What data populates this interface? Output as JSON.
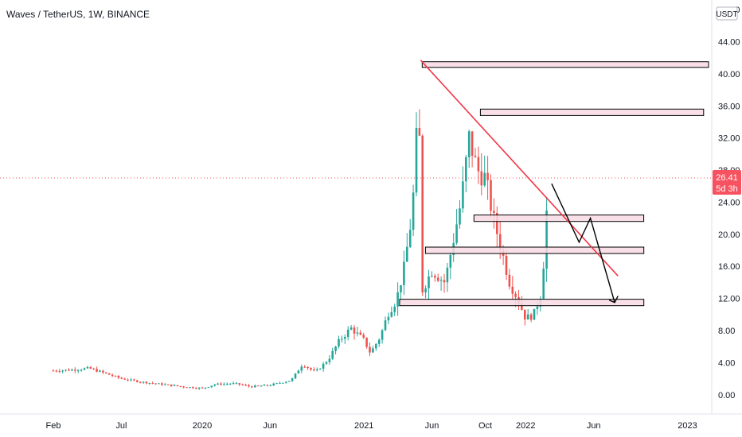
{
  "chart_data": {
    "type": "candlestick",
    "title": "Waves / TetherUS, 1W, BINANCE",
    "currency": "USDT",
    "last_price": "26.41",
    "countdown": "5d 3h",
    "y_ticks": [
      "0.00",
      "4.00",
      "8.00",
      "12.00",
      "16.00",
      "20.00",
      "24.00",
      "28.00",
      "32.00",
      "36.00",
      "40.00",
      "44.00",
      "48.00"
    ],
    "x_ticks": [
      {
        "label": "Feb",
        "t": 2019.08
      },
      {
        "label": "Jul",
        "t": 2019.5
      },
      {
        "label": "2020",
        "t": 2020.0
      },
      {
        "label": "Jun",
        "t": 2020.42
      },
      {
        "label": "2021",
        "t": 2021.0
      },
      {
        "label": "Jun",
        "t": 2021.42
      },
      {
        "label": "Oct",
        "t": 2021.75
      },
      {
        "label": "2022",
        "t": 2022.0
      },
      {
        "label": "Jun",
        "t": 2022.42
      },
      {
        "label": "2023",
        "t": 2023.0
      }
    ],
    "ylim": [
      -2.4,
      49.2
    ],
    "xlim": [
      2018.75,
      2023.15
    ],
    "colors": {
      "up": "#26a69a",
      "down": "#ef5350",
      "trendline": "#f23645",
      "zone_fill": "#f8dbe4",
      "price_line": "#f7525f",
      "arrow": "#000000"
    },
    "anchors": [
      [
        2019.08,
        3.0
      ],
      [
        2019.2,
        3.1
      ],
      [
        2019.3,
        3.3
      ],
      [
        2019.38,
        2.8
      ],
      [
        2019.5,
        2.0
      ],
      [
        2019.62,
        1.6
      ],
      [
        2019.75,
        1.3
      ],
      [
        2019.88,
        1.0
      ],
      [
        2020.0,
        0.8
      ],
      [
        2020.08,
        1.3
      ],
      [
        2020.2,
        1.4
      ],
      [
        2020.3,
        1.0
      ],
      [
        2020.42,
        1.2
      ],
      [
        2020.55,
        1.8
      ],
      [
        2020.62,
        3.8
      ],
      [
        2020.7,
        2.8
      ],
      [
        2020.78,
        4.4
      ],
      [
        2020.85,
        6.8
      ],
      [
        2020.92,
        8.3
      ],
      [
        2021.0,
        6.8
      ],
      [
        2021.04,
        5.2
      ],
      [
        2021.1,
        7.2
      ],
      [
        2021.15,
        10.2
      ],
      [
        2021.2,
        11.8
      ],
      [
        2021.25,
        16.0
      ],
      [
        2021.3,
        23.0
      ],
      [
        2021.32,
        31.0
      ],
      [
        2021.34,
        35.0
      ],
      [
        2021.36,
        13.0
      ],
      [
        2021.42,
        15.5
      ],
      [
        2021.5,
        14.0
      ],
      [
        2021.55,
        19.0
      ],
      [
        2021.6,
        24.0
      ],
      [
        2021.65,
        32.0
      ],
      [
        2021.7,
        28.0
      ],
      [
        2021.75,
        27.0
      ],
      [
        2021.8,
        22.0
      ],
      [
        2021.85,
        18.0
      ],
      [
        2021.9,
        14.0
      ],
      [
        2021.95,
        12.0
      ],
      [
        2022.0,
        9.5
      ],
      [
        2022.05,
        10.0
      ],
      [
        2022.1,
        13.0
      ],
      [
        2022.14,
        26.4
      ]
    ],
    "zones": [
      {
        "x1": 2021.36,
        "x2": 2023.15,
        "low": 40.8,
        "high": 41.5
      },
      {
        "x1": 2021.72,
        "x2": 2023.1,
        "low": 34.8,
        "high": 35.6
      },
      {
        "x1": 2021.68,
        "x2": 2022.73,
        "low": 21.6,
        "high": 22.4
      },
      {
        "x1": 2021.38,
        "x2": 2022.73,
        "low": 17.6,
        "high": 18.4
      },
      {
        "x1": 2021.22,
        "x2": 2022.73,
        "low": 11.1,
        "high": 11.9
      }
    ],
    "trendline": {
      "x1": 2021.35,
      "y1": 41.7,
      "x2": 2022.57,
      "y2": 14.8
    },
    "arrow_path": [
      [
        2022.16,
        26.3
      ],
      [
        2022.33,
        19.0
      ],
      [
        2022.4,
        22.0
      ],
      [
        2022.55,
        11.5
      ]
    ],
    "arrow_tip": [
      2022.57,
      12.3
    ]
  }
}
